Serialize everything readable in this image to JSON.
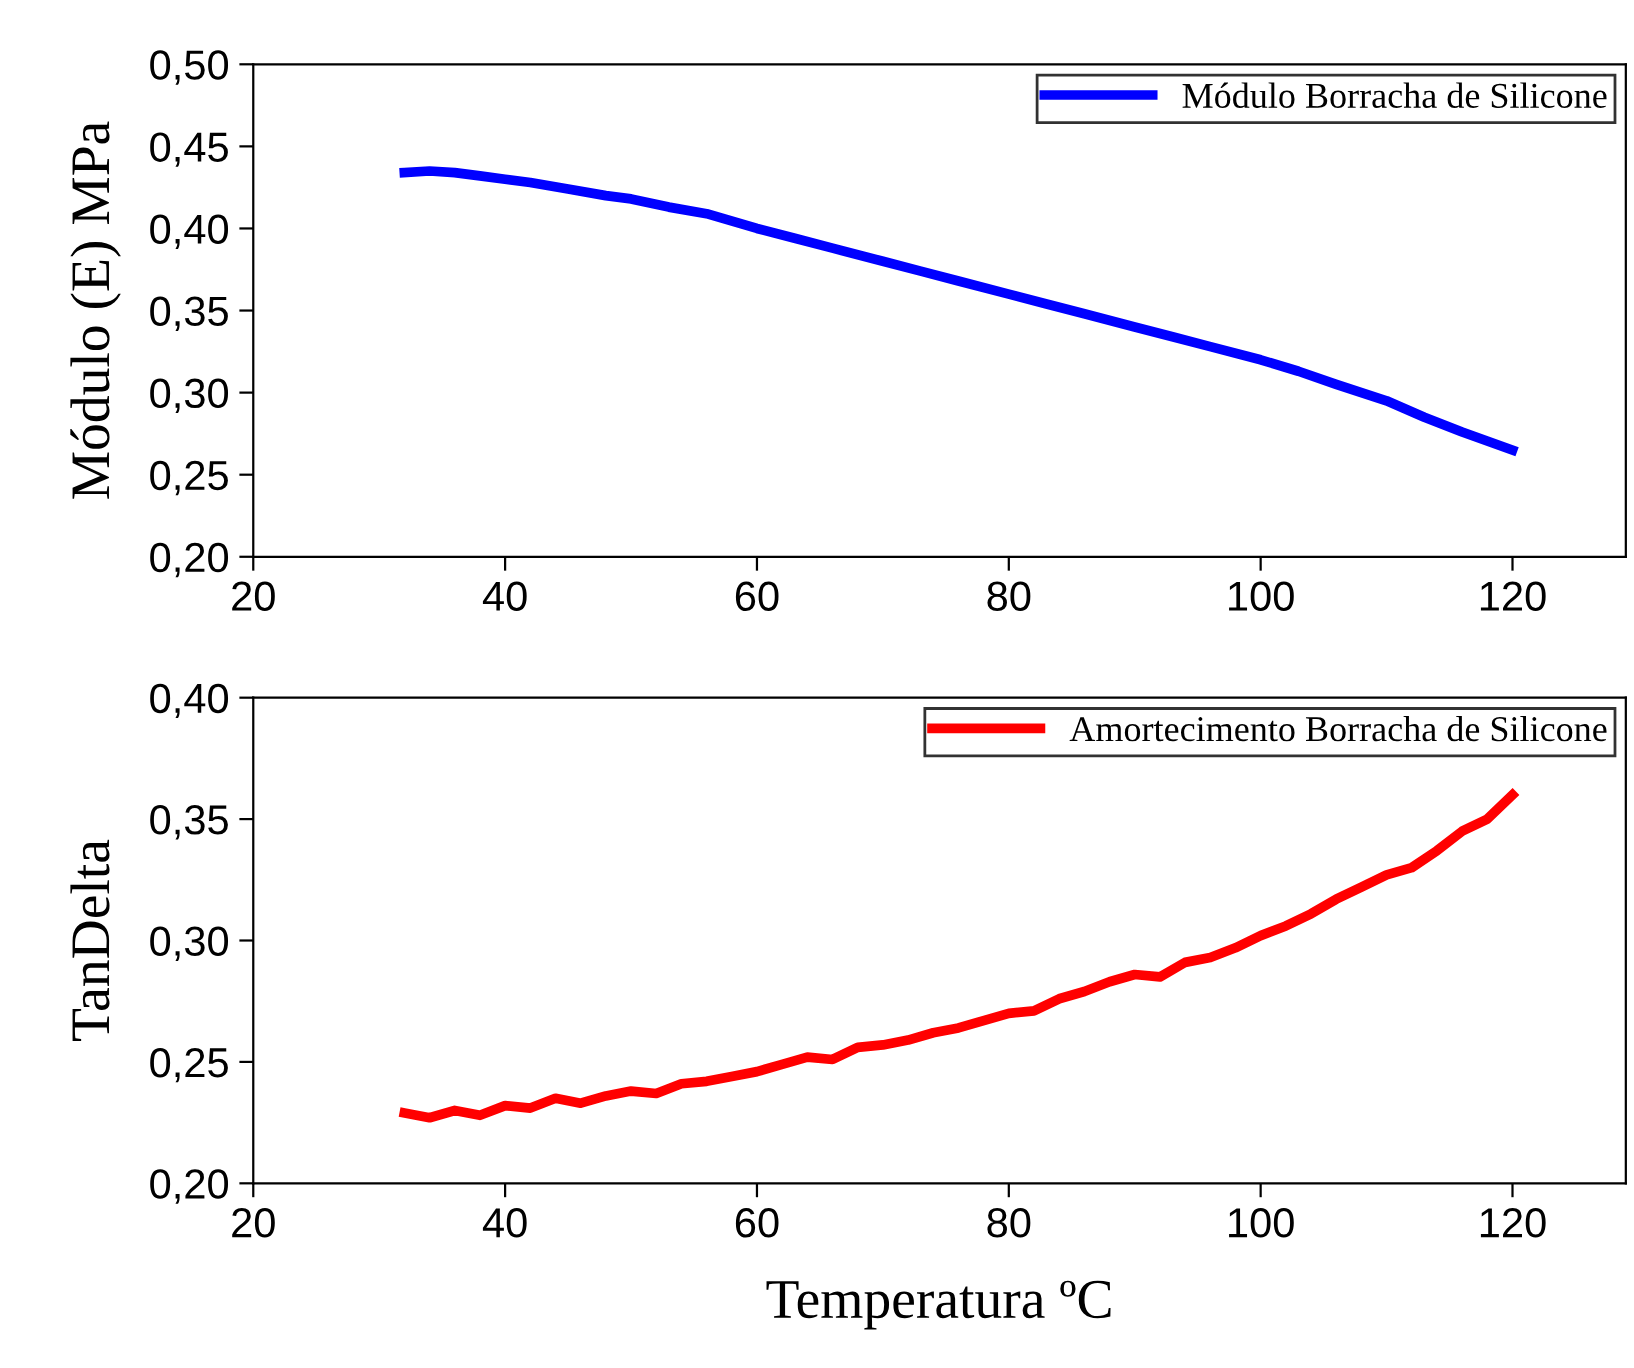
{
  "chart_data": [
    {
      "type": "line",
      "ylabel": "Módulo (E) MPa",
      "legend": "top right",
      "grid": false,
      "series": [
        {
          "name": "Módulo Borracha de Silicone",
          "color": "#0000ff",
          "x": [
            32,
            34,
            36,
            38,
            40,
            42,
            45,
            48,
            50,
            53,
            56,
            60,
            63,
            66,
            70,
            73,
            76,
            80,
            83,
            86,
            90,
            93,
            96,
            100,
            103,
            106,
            110,
            113,
            116,
            120
          ],
          "values": [
            0.434,
            0.435,
            0.434,
            0.432,
            0.43,
            0.428,
            0.424,
            0.42,
            0.418,
            0.413,
            0.409,
            0.4,
            0.394,
            0.388,
            0.38,
            0.374,
            0.368,
            0.36,
            0.354,
            0.348,
            0.34,
            0.334,
            0.328,
            0.32,
            0.313,
            0.305,
            0.295,
            0.285,
            0.276,
            0.265
          ]
        }
      ],
      "xlim": [
        20,
        129
      ],
      "xticks": [
        20,
        40,
        60,
        80,
        100,
        120
      ],
      "ylim": [
        0.2,
        0.5
      ],
      "yticks": [
        {
          "value": 0.2,
          "label": "0,20"
        },
        {
          "value": 0.25,
          "label": "0,25"
        },
        {
          "value": 0.3,
          "label": "0,30"
        },
        {
          "value": 0.35,
          "label": "0,35"
        },
        {
          "value": 0.4,
          "label": "0,40"
        },
        {
          "value": 0.45,
          "label": "0,45"
        },
        {
          "value": 0.5,
          "label": "0,50"
        }
      ]
    },
    {
      "type": "line",
      "ylabel": "TanDelta",
      "xlabel": "Temperatura ºC",
      "legend": "top right",
      "grid": false,
      "series": [
        {
          "name": "Amortecimento Borracha de Silicone",
          "color": "#ff0000",
          "x": [
            32,
            34,
            36,
            38,
            40,
            42,
            44,
            46,
            48,
            50,
            52,
            54,
            56,
            58,
            60,
            62,
            64,
            66,
            68,
            70,
            72,
            74,
            76,
            78,
            80,
            82,
            84,
            86,
            88,
            90,
            92,
            94,
            96,
            98,
            100,
            102,
            104,
            106,
            108,
            110,
            112,
            114,
            116,
            118,
            120
          ],
          "values": [
            0.229,
            0.227,
            0.23,
            0.228,
            0.232,
            0.231,
            0.235,
            0.233,
            0.236,
            0.238,
            0.237,
            0.241,
            0.242,
            0.244,
            0.246,
            0.249,
            0.252,
            0.251,
            0.256,
            0.257,
            0.259,
            0.262,
            0.264,
            0.267,
            0.27,
            0.271,
            0.276,
            0.279,
            0.283,
            0.286,
            0.285,
            0.291,
            0.293,
            0.297,
            0.302,
            0.306,
            0.311,
            0.317,
            0.322,
            0.327,
            0.33,
            0.337,
            0.345,
            0.35,
            0.36
          ]
        }
      ],
      "xlim": [
        20,
        129
      ],
      "xticks": [
        20,
        40,
        60,
        80,
        100,
        120
      ],
      "ylim": [
        0.2,
        0.4
      ],
      "yticks": [
        {
          "value": 0.2,
          "label": "0,20"
        },
        {
          "value": 0.25,
          "label": "0,25"
        },
        {
          "value": 0.3,
          "label": "0,30"
        },
        {
          "value": 0.35,
          "label": "0,35"
        },
        {
          "value": 0.4,
          "label": "0,40"
        }
      ]
    }
  ]
}
